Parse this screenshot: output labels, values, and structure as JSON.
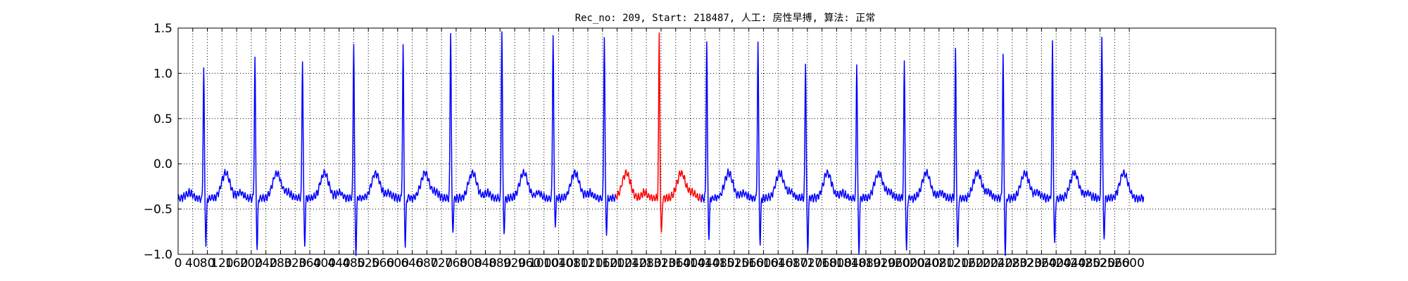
{
  "chart_data": {
    "type": "line",
    "title": "Rec_no: 209, Start: 218487, 人工: 房性早搏, 算法: 正常",
    "xlabel": "",
    "ylabel": "",
    "xlim": [
      0,
      3000
    ],
    "ylim": [
      -1.0,
      1.5
    ],
    "grid": true,
    "y_ticks": [
      "1.5",
      "1.0",
      "0.5",
      "0.0",
      "−0.5",
      "−1.0"
    ],
    "x_ticks": [
      "0",
      "40",
      "80",
      "120",
      "160",
      "200",
      "240",
      "280",
      "320",
      "360",
      "400",
      "440",
      "480",
      "520",
      "560",
      "600",
      "640",
      "680",
      "720",
      "760",
      "800",
      "840",
      "880",
      "920",
      "960",
      "1000",
      "1040",
      "1080",
      "1120",
      "1160",
      "1200",
      "1240",
      "1280",
      "1320",
      "1360",
      "1400",
      "1440",
      "1480",
      "1520",
      "1560",
      "1600",
      "1640",
      "1680",
      "1720",
      "1760",
      "1800",
      "1840",
      "1880",
      "1920",
      "1960",
      "2000",
      "2040",
      "2080",
      "2120",
      "2160",
      "2200",
      "2240",
      "2280",
      "2320",
      "2360",
      "2400",
      "2440",
      "2480",
      "2520",
      "2560",
      "2600"
    ],
    "series": [
      {
        "color": "#0000ff",
        "baseline": -0.38,
        "x_end": 2640,
        "beats": [
          {
            "x": 70,
            "peak": 1.06,
            "trough": -0.88
          },
          {
            "x": 210,
            "peak": 1.17,
            "trough": -0.95
          },
          {
            "x": 340,
            "peak": 1.15,
            "trough": -0.9
          },
          {
            "x": 480,
            "peak": 1.35,
            "trough": -1.0
          },
          {
            "x": 615,
            "peak": 1.3,
            "trough": -0.9
          },
          {
            "x": 745,
            "peak": 1.48,
            "trough": -0.75
          },
          {
            "x": 885,
            "peak": 1.5,
            "trough": -0.75
          },
          {
            "x": 1025,
            "peak": 1.45,
            "trough": -0.66
          },
          {
            "x": 1165,
            "peak": 1.42,
            "trough": -0.77
          },
          {
            "x": 1445,
            "peak": 1.35,
            "trough": -0.82
          },
          {
            "x": 1585,
            "peak": 1.33,
            "trough": -0.87
          },
          {
            "x": 1715,
            "peak": 1.14,
            "trough": -0.98
          },
          {
            "x": 1855,
            "peak": 1.14,
            "trough": -0.98
          },
          {
            "x": 1985,
            "peak": 1.12,
            "trough": -0.98
          },
          {
            "x": 2125,
            "peak": 1.26,
            "trough": -0.96
          },
          {
            "x": 2255,
            "peak": 1.21,
            "trough": -0.99
          },
          {
            "x": 2390,
            "peak": 1.34,
            "trough": -0.9
          },
          {
            "x": 2525,
            "peak": 1.44,
            "trough": -0.83
          }
        ]
      },
      {
        "color": "#ff0000",
        "x_start": 1195,
        "x_end": 1430,
        "beats": [
          {
            "x": 1315,
            "peak": 1.41,
            "trough": -0.79
          }
        ]
      }
    ]
  }
}
